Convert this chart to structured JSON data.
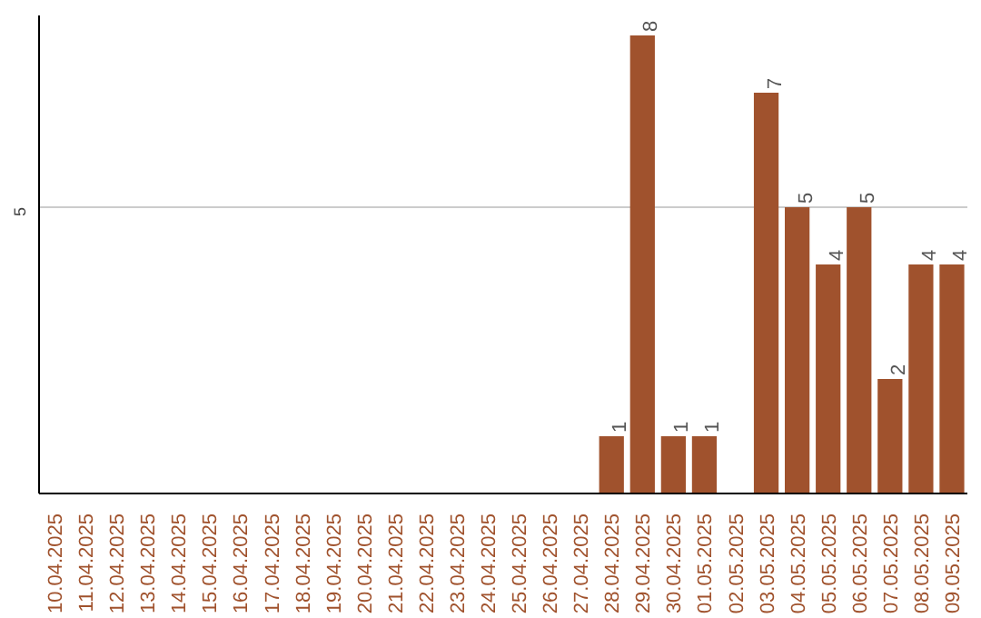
{
  "chart_data": {
    "type": "bar",
    "categories": [
      "10.04.2025",
      "11.04.2025",
      "12.04.2025",
      "13.04.2025",
      "14.04.2025",
      "15.04.2025",
      "16.04.2025",
      "17.04.2025",
      "18.04.2025",
      "19.04.2025",
      "20.04.2025",
      "21.04.2025",
      "22.04.2025",
      "23.04.2025",
      "24.04.2025",
      "25.04.2025",
      "26.04.2025",
      "27.04.2025",
      "28.04.2025",
      "29.04.2025",
      "30.04.2025",
      "01.05.2025",
      "02.05.2025",
      "03.05.2025",
      "04.05.2025",
      "05.05.2025",
      "06.05.2025",
      "07.05.2025",
      "08.05.2025",
      "09.05.2025"
    ],
    "values": [
      null,
      null,
      null,
      null,
      null,
      null,
      null,
      null,
      null,
      null,
      null,
      null,
      null,
      null,
      null,
      null,
      null,
      null,
      1,
      8,
      1,
      1,
      null,
      7,
      5,
      4,
      5,
      2,
      4,
      4
    ],
    "data_labels": true,
    "color": "#a0522d",
    "ylim": [
      0,
      8.35
    ],
    "ref_lines": [
      {
        "axis": "y",
        "value": 5,
        "label": "5",
        "color": "#cccccc"
      }
    ]
  }
}
